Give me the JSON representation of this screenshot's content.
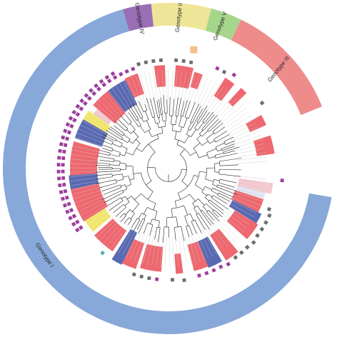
{
  "figure": {
    "genotypes": [
      {
        "label": "Genotype I",
        "color": "#87a8d8"
      },
      {
        "label": "Genotype IV",
        "color": "#9a6eb5"
      },
      {
        "label": "Genotype II",
        "color": "#efe598"
      },
      {
        "label": "Genotype V",
        "color": "#a6d68c"
      },
      {
        "label": "Genotype III",
        "color": "#ee8b8b"
      }
    ],
    "clade_colors": {
      "red": "#ee5b63",
      "blue": "#4b5cab",
      "yellow": "#f2e65e",
      "pink": "#f3c4cc",
      "light": "#dfe3f2"
    },
    "marker_colors": {
      "gray": "#6d6d6d",
      "purple": "#9c3d9c",
      "teal": "#4fb3b3"
    },
    "center_badge_color": "#f3c089"
  }
}
